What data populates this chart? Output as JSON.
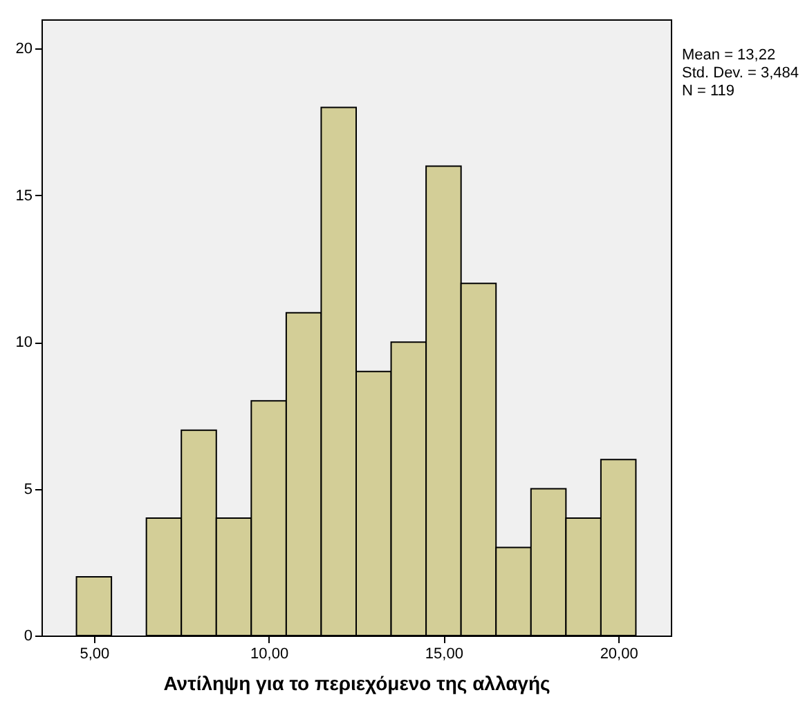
{
  "chart_data": {
    "type": "histogram",
    "xlabel": "Αντίληψη για το περιεχόμενο της αλλαγής",
    "bins": [
      4.5,
      5.5,
      6.5,
      7.5,
      8.5,
      9.5,
      10.5,
      11.5,
      12.5,
      13.5,
      14.5,
      15.5,
      16.5,
      17.5,
      18.5,
      19.5,
      20.5
    ],
    "values": [
      2,
      0,
      4,
      7,
      4,
      8,
      11,
      18,
      9,
      10,
      16,
      12,
      3,
      5,
      4,
      6
    ],
    "color": "#d3ce97",
    "xlim": [
      3.5,
      21.5
    ],
    "xticks": [
      {
        "value": 5,
        "label": "5,00"
      },
      {
        "value": 10,
        "label": "10,00"
      },
      {
        "value": 15,
        "label": "15,00"
      },
      {
        "value": 20,
        "label": "20,00"
      }
    ],
    "ylim": [
      0,
      21
    ],
    "yticks": [
      0,
      5,
      10,
      15,
      20
    ],
    "grid": false,
    "annotations": [
      "Mean = 13,22",
      "Std. Dev. = 3,484",
      "N = 119"
    ]
  }
}
